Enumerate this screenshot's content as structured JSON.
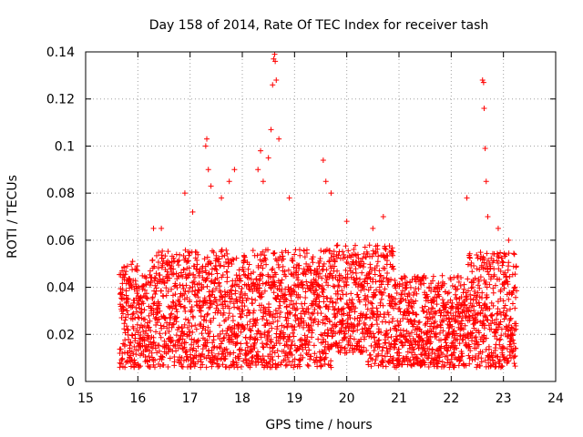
{
  "chart_data": {
    "type": "scatter",
    "title": "Day 158 of 2014, Rate Of TEC Index for receiver tash",
    "xlabel": "GPS time / hours",
    "ylabel": "ROTI / TECUs",
    "xlim": [
      15,
      24
    ],
    "ylim": [
      0,
      0.14
    ],
    "xticks": [
      15,
      16,
      17,
      18,
      19,
      20,
      21,
      22,
      23,
      24
    ],
    "xtick_labels": [
      "15",
      "16",
      "17",
      "18",
      "19",
      "20",
      "21",
      "22",
      "23",
      "24"
    ],
    "yticks": [
      0,
      0.02,
      0.04,
      0.06,
      0.08,
      0.1,
      0.12,
      0.14
    ],
    "ytick_labels": [
      "0",
      "0.02",
      "0.04",
      "0.06",
      "0.08",
      "0.1",
      "0.12",
      "0.14"
    ],
    "grid": true,
    "marker": "+",
    "color": "#ff0000",
    "data_extent_x": [
      15.65,
      23.25
    ],
    "series": [
      {
        "name": "ROTI",
        "x": [
          15.7,
          15.8,
          15.9,
          15.7,
          15.85,
          16.3,
          16.45,
          16.9,
          17.05,
          17.3,
          17.32,
          17.35,
          17.4,
          17.6,
          17.75,
          17.85,
          18.3,
          18.35,
          18.4,
          18.5,
          18.6,
          18.62,
          18.63,
          18.65,
          18.55,
          18.58,
          18.7,
          18.9,
          19.55,
          19.6,
          19.7,
          20.0,
          20.5,
          20.7,
          22.3,
          22.6,
          22.62,
          22.63,
          22.65,
          22.67,
          22.7,
          22.9,
          23.1
        ],
        "y": [
          0.047,
          0.049,
          0.051,
          0.012,
          0.01,
          0.065,
          0.065,
          0.08,
          0.072,
          0.1,
          0.103,
          0.09,
          0.083,
          0.078,
          0.085,
          0.09,
          0.09,
          0.098,
          0.085,
          0.095,
          0.137,
          0.139,
          0.136,
          0.128,
          0.107,
          0.126,
          0.103,
          0.078,
          0.094,
          0.085,
          0.08,
          0.068,
          0.065,
          0.07,
          0.078,
          0.128,
          0.127,
          0.116,
          0.099,
          0.085,
          0.07,
          0.065,
          0.06
        ]
      }
    ]
  }
}
